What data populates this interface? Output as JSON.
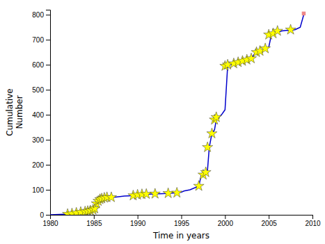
{
  "chart_data": {
    "type": "line",
    "xlabel": "Time in years",
    "ylabel": "Cumulative\nNumber",
    "xlim": [
      1980,
      2010
    ],
    "ylim": [
      0,
      820
    ],
    "xticks": [
      1980,
      1985,
      1990,
      1995,
      2000,
      2005,
      2010
    ],
    "yticks": [
      0,
      100,
      200,
      300,
      400,
      500,
      600,
      700,
      800
    ],
    "grid": false,
    "series": [
      {
        "type": "line",
        "color": "#0000cc",
        "x": [
          1980,
          1982.0,
          1982.3,
          1982.5,
          1982.8,
          1983.0,
          1983.3,
          1983.5,
          1983.7,
          1984.0,
          1984.2,
          1984.5,
          1984.8,
          1985.0,
          1985.2,
          1985.4,
          1985.6,
          1985.8,
          1986.0,
          1986.3,
          1986.6,
          1987.0,
          1987.5,
          1988.0,
          1988.5,
          1989.0,
          1989.5,
          1990.0,
          1990.5,
          1991.0,
          1991.5,
          1992.0,
          1992.5,
          1993.0,
          1993.5,
          1994.0,
          1994.5,
          1995.0,
          1995.3,
          1996.0,
          1997.0,
          1997.3,
          1997.5,
          1997.8,
          1998.0,
          1998.2,
          1998.5,
          1998.8,
          1999.0,
          1999.3,
          1999.6,
          1999.8,
          2000.0,
          2000.3,
          2000.6,
          2001.0,
          2001.5,
          2002.0,
          2002.5,
          2003.0,
          2003.3,
          2003.6,
          2004.0,
          2004.3,
          2004.6,
          2005.0,
          2005.3,
          2005.6,
          2006.0,
          2006.5,
          2007.0,
          2007.5,
          2008.0,
          2008.3,
          2008.6,
          2009.0
        ],
        "values": [
          0,
          3,
          4,
          5,
          7,
          8,
          10,
          11,
          12,
          13,
          15,
          17,
          20,
          25,
          45,
          55,
          62,
          65,
          68,
          69,
          70,
          70,
          71,
          73,
          75,
          76,
          77,
          80,
          82,
          82,
          83,
          84,
          84,
          85,
          86,
          87,
          88,
          90,
          95,
          100,
          115,
          160,
          170,
          175,
          180,
          270,
          325,
          340,
          380,
          390,
          400,
          410,
          420,
          595,
          600,
          605,
          610,
          615,
          620,
          625,
          640,
          650,
          655,
          660,
          665,
          670,
          720,
          725,
          730,
          735,
          737,
          738,
          740,
          745,
          750,
          800
        ]
      },
      {
        "type": "scatter",
        "marker": "star",
        "color": "#ffff00",
        "x": [
          1982.0,
          1982.5,
          1983.0,
          1983.5,
          1984.0,
          1984.3,
          1984.6,
          1984.9,
          1985.1,
          1985.3,
          1985.5,
          1985.7,
          1985.9,
          1986.2,
          1986.5,
          1987.0,
          1989.5,
          1990.0,
          1990.5,
          1991.0,
          1992.0,
          1993.5,
          1994.5,
          1997.0,
          1997.5,
          1997.8,
          1998.0,
          1998.5,
          1998.8,
          1999.0,
          2000.0,
          2000.3,
          2001.0,
          2001.5,
          2002.0,
          2002.5,
          2003.0,
          2003.6,
          2004.0,
          2004.6,
          2005.0,
          2005.5,
          2006.0,
          2007.5
        ],
        "values": [
          3,
          5,
          8,
          11,
          13,
          15,
          17,
          20,
          25,
          45,
          55,
          62,
          65,
          68,
          70,
          70,
          77,
          80,
          82,
          83,
          84,
          86,
          88,
          115,
          160,
          170,
          270,
          325,
          380,
          390,
          595,
          600,
          605,
          610,
          615,
          620,
          625,
          650,
          655,
          665,
          720,
          725,
          735,
          740
        ]
      },
      {
        "type": "scatter",
        "marker": "square",
        "color": "#ee8888",
        "x": [
          2009.0
        ],
        "values": [
          805
        ]
      }
    ]
  }
}
